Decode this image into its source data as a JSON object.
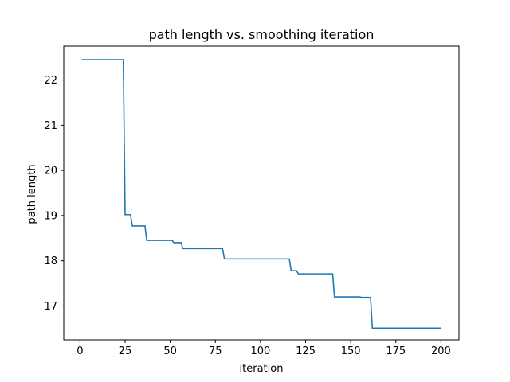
{
  "chart_data": {
    "type": "line",
    "title": "path length vs. smoothing iteration",
    "xlabel": "iteration",
    "ylabel": "path length",
    "xlim": [
      -9,
      210
    ],
    "ylim": [
      16.25,
      22.75
    ],
    "xticks": [
      0,
      25,
      50,
      75,
      100,
      125,
      150,
      175,
      200
    ],
    "yticks": [
      17,
      18,
      19,
      20,
      21,
      22
    ],
    "grid": false,
    "legend": "none",
    "line_color": "#1f77b4",
    "series": [
      {
        "x": [
          1,
          24,
          25,
          28,
          29,
          36,
          37,
          51,
          52,
          56,
          57,
          79,
          80,
          116,
          117,
          120,
          121,
          140,
          141,
          155,
          156,
          161,
          162,
          200
        ],
        "y": [
          22.45,
          22.45,
          19.02,
          19.02,
          18.77,
          18.77,
          18.45,
          18.45,
          18.4,
          18.4,
          18.27,
          18.27,
          18.04,
          18.04,
          17.78,
          17.78,
          17.71,
          17.71,
          17.2,
          17.2,
          17.19,
          17.19,
          16.51,
          16.51
        ]
      }
    ]
  }
}
